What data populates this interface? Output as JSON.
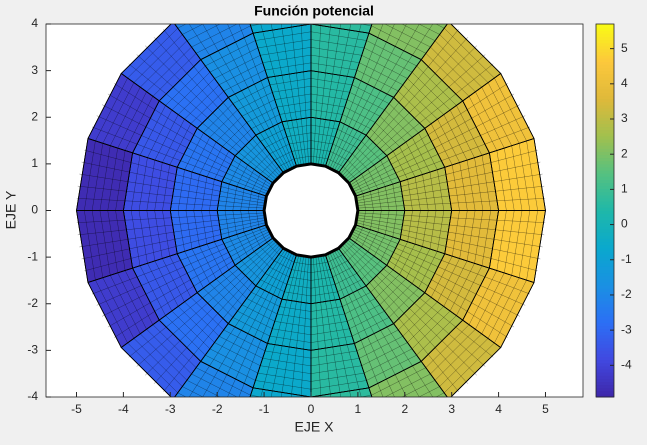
{
  "chart_data": {
    "type": "polar-surface",
    "title": "Función potencial",
    "x_label": "EJE X",
    "y_label": "EJE Y",
    "xlim": [
      -5.65,
      5.8
    ],
    "xticks": [
      -5,
      -4,
      -3,
      -2,
      -1,
      0,
      1,
      2,
      3,
      4,
      5
    ],
    "ylim": [
      -4,
      4
    ],
    "yticks": [
      -4,
      -3,
      -2,
      -1,
      0,
      1,
      2,
      3,
      4
    ],
    "colormap": "parula",
    "clim": [
      -4.9,
      5.7
    ],
    "cticks": [
      -4,
      -3,
      -2,
      -1,
      0,
      1,
      2,
      3,
      4,
      5
    ],
    "r": [
      1,
      2,
      3,
      4,
      5
    ],
    "theta_deg": [
      0,
      18,
      36,
      54,
      72,
      90,
      108,
      126,
      144,
      162,
      180,
      198,
      216,
      234,
      252,
      270,
      288,
      306,
      324,
      342
    ],
    "z": [
      [
        2.1,
        1.9,
        1.5,
        1.0,
        0.3,
        -0.3,
        -1.0,
        -1.5,
        -1.9,
        -2.1,
        -2.1,
        -1.9,
        -1.5,
        -1.0,
        -0.3,
        0.3,
        1.0,
        1.5,
        1.9,
        2.1
      ],
      [
        2.9,
        2.6,
        2.1,
        1.3,
        0.5,
        -0.5,
        -1.3,
        -2.1,
        -2.6,
        -2.9,
        -2.9,
        -2.6,
        -2.1,
        -1.3,
        -0.5,
        0.5,
        1.3,
        2.1,
        2.6,
        2.9
      ],
      [
        3.7,
        3.4,
        2.7,
        1.7,
        0.6,
        -0.6,
        -1.7,
        -2.7,
        -3.4,
        -3.7,
        -3.7,
        -3.4,
        -2.7,
        -1.7,
        -0.6,
        0.6,
        1.7,
        2.7,
        3.4,
        3.7
      ],
      [
        4.7,
        4.2,
        3.3,
        2.1,
        0.7,
        -0.7,
        -2.1,
        -3.3,
        -4.2,
        -4.7,
        -4.7,
        -4.2,
        -3.3,
        -2.1,
        -0.7,
        0.7,
        2.1,
        3.3,
        4.2,
        4.7
      ]
    ]
  }
}
